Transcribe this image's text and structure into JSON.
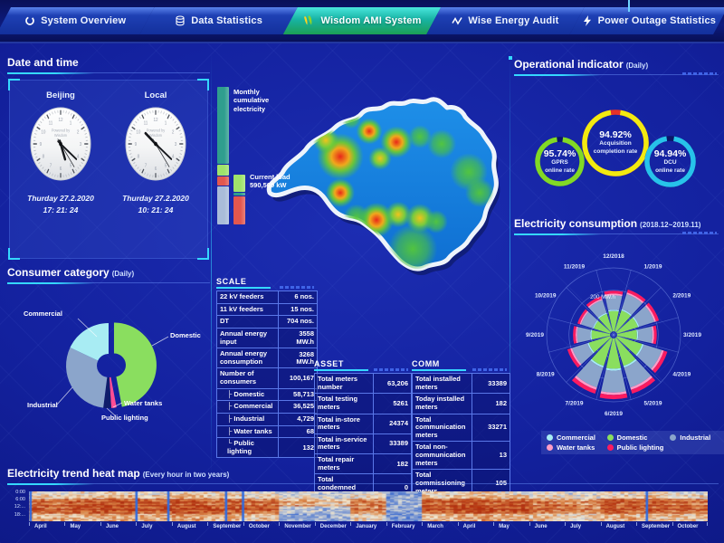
{
  "colors": {
    "accent": "#35d8ff",
    "active_tab_green": "#1c9e54",
    "panel_border": "#5a78e8",
    "background": "#13219e"
  },
  "nav": {
    "tabs": [
      {
        "label": "System Overview",
        "icon": "ring-icon",
        "active": false
      },
      {
        "label": "Data Statistics",
        "icon": "database-icon",
        "active": false
      },
      {
        "label": "Wisdom AMI System",
        "icon": "wisdom-logo-icon",
        "active": true
      },
      {
        "label": "Wise Energy Audit",
        "icon": "wave-icon",
        "active": false
      },
      {
        "label": "Power Outage Statistics",
        "icon": "bolt-icon",
        "active": false
      }
    ]
  },
  "datetime": {
    "title": "Date and time",
    "watermark": "Powered by\nWisdom",
    "clocks": [
      {
        "city": "Beijing",
        "date": "Thurday 27.2.2020",
        "time": "17: 21: 24"
      },
      {
        "city": "Local",
        "date": "Thurday 27.2.2020",
        "time": "10: 21: 24"
      }
    ]
  },
  "consumer": {
    "title": "Consumer category",
    "subtitle": "(Daily)"
  },
  "operational": {
    "title": "Operational indicator",
    "subtitle": "(Daily)"
  },
  "consumption": {
    "title": "Electricity consumption",
    "subtitle": "(2018.12~2019.11)"
  },
  "heatmap_panel": {
    "title": "Electricity trend heat map",
    "subtitle": "(Every hour in two years)"
  },
  "center": {
    "bar1_label": "Monthly\ncumulative\nelectricity",
    "bar2_label": "Current load",
    "bar2_value": "590,569 kW"
  },
  "tables": {
    "scale": {
      "title": "SCALE",
      "rows": [
        {
          "label": "22 kV feeders",
          "value": "6 nos.",
          "indent": false
        },
        {
          "label": "11 kV feeders",
          "value": "15 nos.",
          "indent": false
        },
        {
          "label": "DT",
          "value": "704 nos.",
          "indent": false
        },
        {
          "label": "Annual energy input",
          "value": "3558\nMW.h",
          "indent": false
        },
        {
          "label": "Annual energy\nconsumption",
          "value": "3268\nMW.h",
          "indent": false
        },
        {
          "label": "Number of consumers",
          "value": "100,167",
          "indent": false
        },
        {
          "label": "Domestic",
          "value": "58,713",
          "indent": true
        },
        {
          "label": "Commercial",
          "value": "36,525",
          "indent": true
        },
        {
          "label": "Industrial",
          "value": "4,729",
          "indent": true
        },
        {
          "label": "Water tanks",
          "value": "68",
          "indent": true
        },
        {
          "label": "Public lighting",
          "value": "132",
          "indent": true,
          "last": true
        }
      ]
    },
    "asset": {
      "title": "ASSET",
      "rows": [
        {
          "label": "Total meters number",
          "value": "63,206"
        },
        {
          "label": "Total testing meters",
          "value": "5261"
        },
        {
          "label": "Total in-store meters",
          "value": "24374"
        },
        {
          "label": "Total in-service meters",
          "value": "33389"
        },
        {
          "label": "Total repair meters",
          "value": "182"
        },
        {
          "label": "Total condemned meters",
          "value": "0"
        }
      ]
    },
    "comm": {
      "title": "COMM",
      "rows": [
        {
          "label": "Total installed meters",
          "value": "33389"
        },
        {
          "label": "Today installed meters",
          "value": "182"
        },
        {
          "label": "Total communication meters",
          "value": "33271"
        },
        {
          "label": "Total non-communication meters",
          "value": "13"
        },
        {
          "label": "Total commissioning meters",
          "value": "105"
        }
      ]
    }
  },
  "chart_data": [
    {
      "id": "consumer-pie",
      "type": "pie",
      "title": "Consumer category (Daily)",
      "unit": "%",
      "slices": [
        {
          "name": "Domestic",
          "value": 47,
          "color": "#8ade5f",
          "explode": true
        },
        {
          "name": "Water tanks",
          "value": 2,
          "color": "#ff4d94",
          "explode": false
        },
        {
          "name": "Public lighting",
          "value": 3,
          "color": "#101d6b",
          "explode": false
        },
        {
          "name": "Industrial",
          "value": 30,
          "color": "#8ba5cb",
          "explode": false
        },
        {
          "name": "Commercial",
          "value": 18,
          "color": "#a8ecf3",
          "explode": false
        }
      ]
    },
    {
      "id": "operational-gauges",
      "type": "pie",
      "title": "Operational indicator (Daily)",
      "gauges": [
        {
          "value": 95.74,
          "line1": "GPRS",
          "line2": "online rate",
          "color": "#82d926",
          "gap_color": "#0b1566"
        },
        {
          "value": 94.92,
          "line1": "Acquisition",
          "line2": "completion rate",
          "color": "#f2ea10",
          "gap_color": "#e63128"
        },
        {
          "value": 94.94,
          "line1": "DCU",
          "line2": "online rate",
          "color": "#27c3ea",
          "gap_color": "#0b1566"
        }
      ]
    },
    {
      "id": "consumption-rose",
      "type": "bar",
      "title": "Electricity consumption (2018.12~2019.11)",
      "axis_label": "200 MW.h",
      "ylim": [
        0,
        360
      ],
      "ylabel": "MW.h",
      "categories": [
        "12/2018",
        "1/2019",
        "2/2019",
        "3/2019",
        "4/2019",
        "5/2019",
        "6/2019",
        "7/2019",
        "8/2019",
        "9/2019",
        "10/2019",
        "11/2019"
      ],
      "totals": [
        230,
        250,
        250,
        225,
        300,
        330,
        345,
        330,
        255,
        210,
        195,
        210
      ],
      "series": [
        {
          "name": "Domestic",
          "share": 0.5,
          "color": "#8ade5f"
        },
        {
          "name": "Commercial",
          "share": 0.03,
          "color": "#a8ecf3"
        },
        {
          "name": "Industrial",
          "share": 0.36,
          "color": "#8ba5cb"
        },
        {
          "name": "Water tanks",
          "share": 0.04,
          "color": "#ff9dc6"
        },
        {
          "name": "Public lighting",
          "share": 0.07,
          "color": "#fb1b60"
        }
      ],
      "legend": [
        {
          "name": "Commercial",
          "color": "#a8ecf3"
        },
        {
          "name": "Domestic",
          "color": "#8ade5f"
        },
        {
          "name": "Industrial",
          "color": "#8ba5cb"
        },
        {
          "name": "Water tanks",
          "color": "#ff9dc6"
        },
        {
          "name": "Public lighting",
          "color": "#fb1b60"
        }
      ]
    },
    {
      "id": "trend-heatmap",
      "type": "heatmap",
      "title": "Electricity trend heat map (Every hour in two years)",
      "hours": [
        "0:00",
        "6:00",
        "12:...",
        "18:..."
      ],
      "months": [
        "April",
        "May",
        "June",
        "July",
        "August",
        "September",
        "October",
        "November",
        "December",
        "January",
        "February",
        "March",
        "April",
        "May",
        "June",
        "July",
        "August",
        "September",
        "October"
      ],
      "intensity": [
        [
          0.55,
          0.75,
          0.8,
          0.6
        ],
        [
          0.55,
          0.8,
          0.85,
          0.6
        ],
        [
          0.6,
          0.85,
          0.9,
          0.65
        ],
        [
          0.55,
          0.8,
          0.85,
          0.6
        ],
        [
          0.6,
          0.85,
          0.9,
          0.65
        ],
        [
          0.55,
          0.8,
          0.85,
          0.6
        ],
        [
          0.5,
          0.75,
          0.8,
          0.55
        ],
        [
          0.45,
          0.6,
          0.35,
          0.2
        ],
        [
          0.4,
          0.5,
          0.3,
          0.25
        ],
        [
          0.5,
          0.7,
          0.7,
          0.5
        ],
        [
          0.2,
          0.25,
          0.2,
          0.15
        ],
        [
          0.55,
          0.8,
          0.85,
          0.6
        ],
        [
          0.6,
          0.85,
          0.9,
          0.65
        ],
        [
          0.55,
          0.8,
          0.85,
          0.6
        ],
        [
          0.5,
          0.7,
          0.75,
          0.55
        ],
        [
          0.45,
          0.65,
          0.7,
          0.5
        ],
        [
          0.55,
          0.8,
          0.85,
          0.6
        ],
        [
          0.55,
          0.8,
          0.8,
          0.55
        ],
        [
          0.5,
          0.75,
          0.8,
          0.55
        ]
      ],
      "cold_lines": [
        0.002,
        0.158,
        0.205,
        0.29,
        0.315,
        0.91
      ]
    },
    {
      "id": "cumulative-bars",
      "type": "bar",
      "title": "Monthly cumulative electricity / Current load",
      "bars": [
        {
          "label": "Monthly cumulative electricity",
          "segments": [
            {
              "color": "#2f9e8e",
              "frac": 0.57
            },
            {
              "color": "#9fe36b",
              "frac": 0.08
            },
            {
              "color": "#e2574e",
              "frac": 0.07
            },
            {
              "color": "#a9bcd9",
              "frac": 0.28
            }
          ]
        },
        {
          "label": "Current load 590,569 kW",
          "segments": [
            {
              "color": "#9fe36b",
              "frac": 0.36
            },
            {
              "color": "#2f9e8e",
              "frac": 0.06
            },
            {
              "color": "#e2574e",
              "frac": 0.58
            }
          ]
        }
      ]
    },
    {
      "id": "map-heat",
      "type": "heatmap",
      "title": "Regional load heat map",
      "spots": [
        {
          "x": 108,
          "y": 78,
          "r": 16,
          "t": "r"
        },
        {
          "x": 92,
          "y": 60,
          "r": 9,
          "t": "y"
        },
        {
          "x": 140,
          "y": 50,
          "r": 9,
          "t": "r"
        },
        {
          "x": 170,
          "y": 62,
          "r": 11,
          "t": "r"
        },
        {
          "x": 152,
          "y": 80,
          "r": 8,
          "t": "y"
        },
        {
          "x": 196,
          "y": 56,
          "r": 8,
          "t": "g"
        },
        {
          "x": 220,
          "y": 64,
          "r": 10,
          "t": "g"
        },
        {
          "x": 250,
          "y": 95,
          "r": 13,
          "t": "g"
        },
        {
          "x": 262,
          "y": 118,
          "r": 10,
          "t": "g"
        },
        {
          "x": 108,
          "y": 118,
          "r": 10,
          "t": "r"
        },
        {
          "x": 48,
          "y": 138,
          "r": 11,
          "t": "r"
        },
        {
          "x": 70,
          "y": 128,
          "r": 8,
          "t": "y"
        },
        {
          "x": 148,
          "y": 148,
          "r": 12,
          "t": "r"
        },
        {
          "x": 172,
          "y": 142,
          "r": 9,
          "t": "y"
        },
        {
          "x": 196,
          "y": 146,
          "r": 10,
          "t": "y"
        },
        {
          "x": 214,
          "y": 150,
          "r": 8,
          "t": "g"
        },
        {
          "x": 188,
          "y": 180,
          "r": 17,
          "t": "g"
        },
        {
          "x": 126,
          "y": 145,
          "r": 9,
          "t": "g"
        },
        {
          "x": 66,
          "y": 52,
          "r": 7,
          "t": "g"
        },
        {
          "x": 120,
          "y": 36,
          "r": 7,
          "t": "g"
        }
      ]
    }
  ]
}
